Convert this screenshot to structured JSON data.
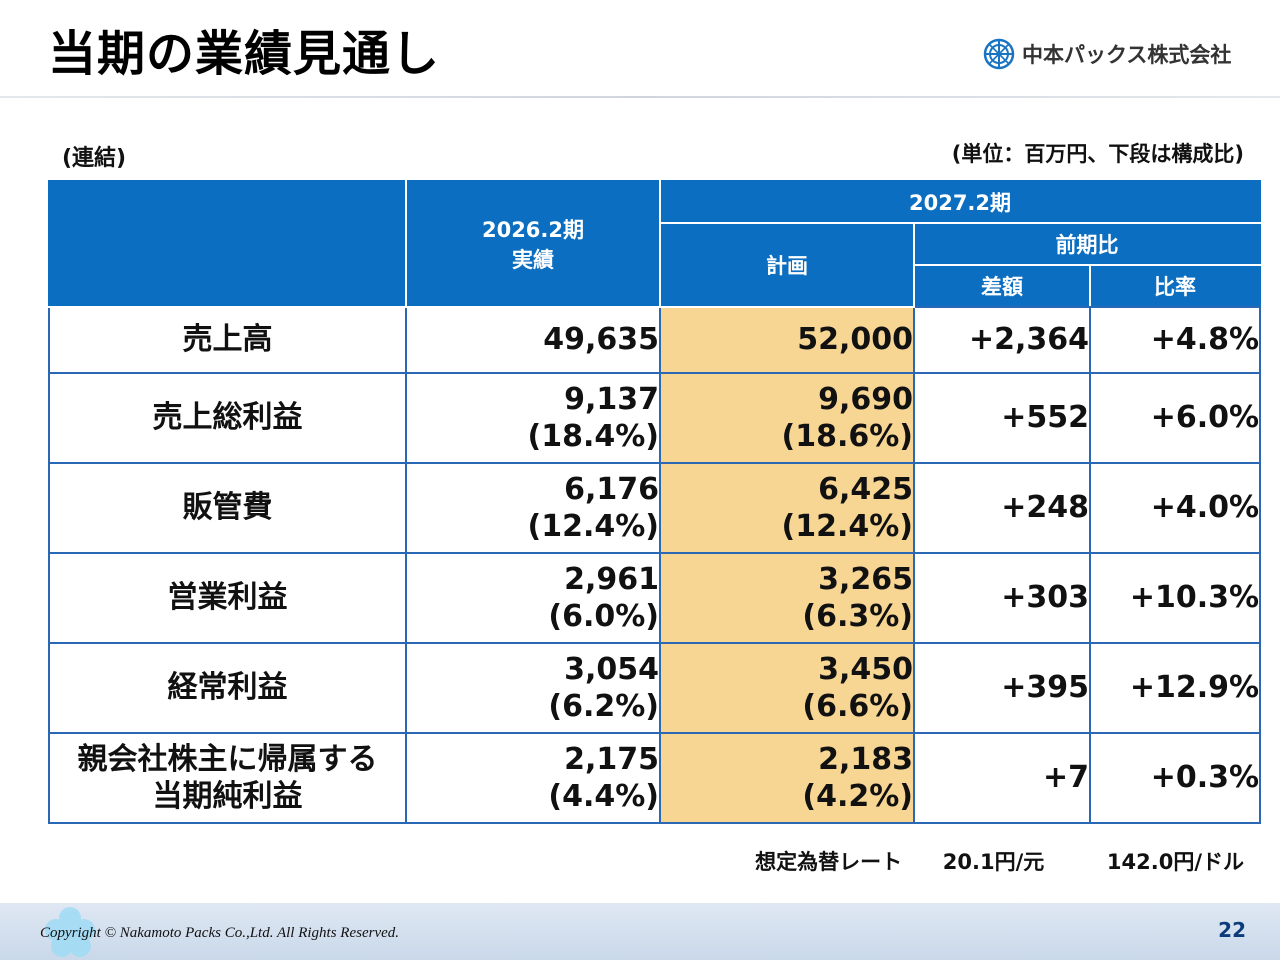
{
  "title": "当期の業績見通し",
  "logo": {
    "name": "中本パックス株式会社",
    "icon": "company-logo-icon",
    "color": "#1a74c4"
  },
  "consolidated_label": "(連結)",
  "unit_note": "(単位：百万円、下段は構成比)",
  "table": {
    "headers": {
      "prev_period_line1": "2026.2期",
      "prev_period_line2": "実績",
      "next_period": "2027.2期",
      "plan": "計画",
      "yoy": "前期比",
      "diff": "差額",
      "ratio": "比率"
    },
    "rows": [
      {
        "label": "売上高",
        "label2": "",
        "actual": "49,635",
        "actual_ratio": "",
        "plan": "52,000",
        "plan_ratio": "",
        "diff": "+2,364",
        "rate": "+4.8%"
      },
      {
        "label": "売上総利益",
        "label2": "",
        "actual": "9,137",
        "actual_ratio": "(18.4%)",
        "plan": "9,690",
        "plan_ratio": "(18.6%)",
        "diff": "+552",
        "rate": "+6.0%"
      },
      {
        "label": "販管費",
        "label2": "",
        "actual": "6,176",
        "actual_ratio": "(12.4%)",
        "plan": "6,425",
        "plan_ratio": "(12.4%)",
        "diff": "+248",
        "rate": "+4.0%"
      },
      {
        "label": "営業利益",
        "label2": "",
        "actual": "2,961",
        "actual_ratio": "(6.0%)",
        "plan": "3,265",
        "plan_ratio": "(6.3%)",
        "diff": "+303",
        "rate": "+10.3%"
      },
      {
        "label": "経常利益",
        "label2": "",
        "actual": "3,054",
        "actual_ratio": "(6.2%)",
        "plan": "3,450",
        "plan_ratio": "(6.6%)",
        "diff": "+395",
        "rate": "+12.9%"
      },
      {
        "label": "親会社株主に帰属する",
        "label2": "当期純利益",
        "actual": "2,175",
        "actual_ratio": "(4.4%)",
        "plan": "2,183",
        "plan_ratio": "(4.2%)",
        "diff": "+7",
        "rate": "+0.3%"
      }
    ]
  },
  "fx_note": {
    "label": "想定為替レート",
    "cny": "20.1円/元",
    "usd": "142.0円/ドル"
  },
  "footer": {
    "copyright": "Copyright © Nakamoto Packs Co.,Ltd. All Rights Reserved.",
    "page_number": "22"
  },
  "colors": {
    "header_blue": "#0b6ec0",
    "plan_highlight": "#f7d694",
    "border": "#2a67b5"
  }
}
